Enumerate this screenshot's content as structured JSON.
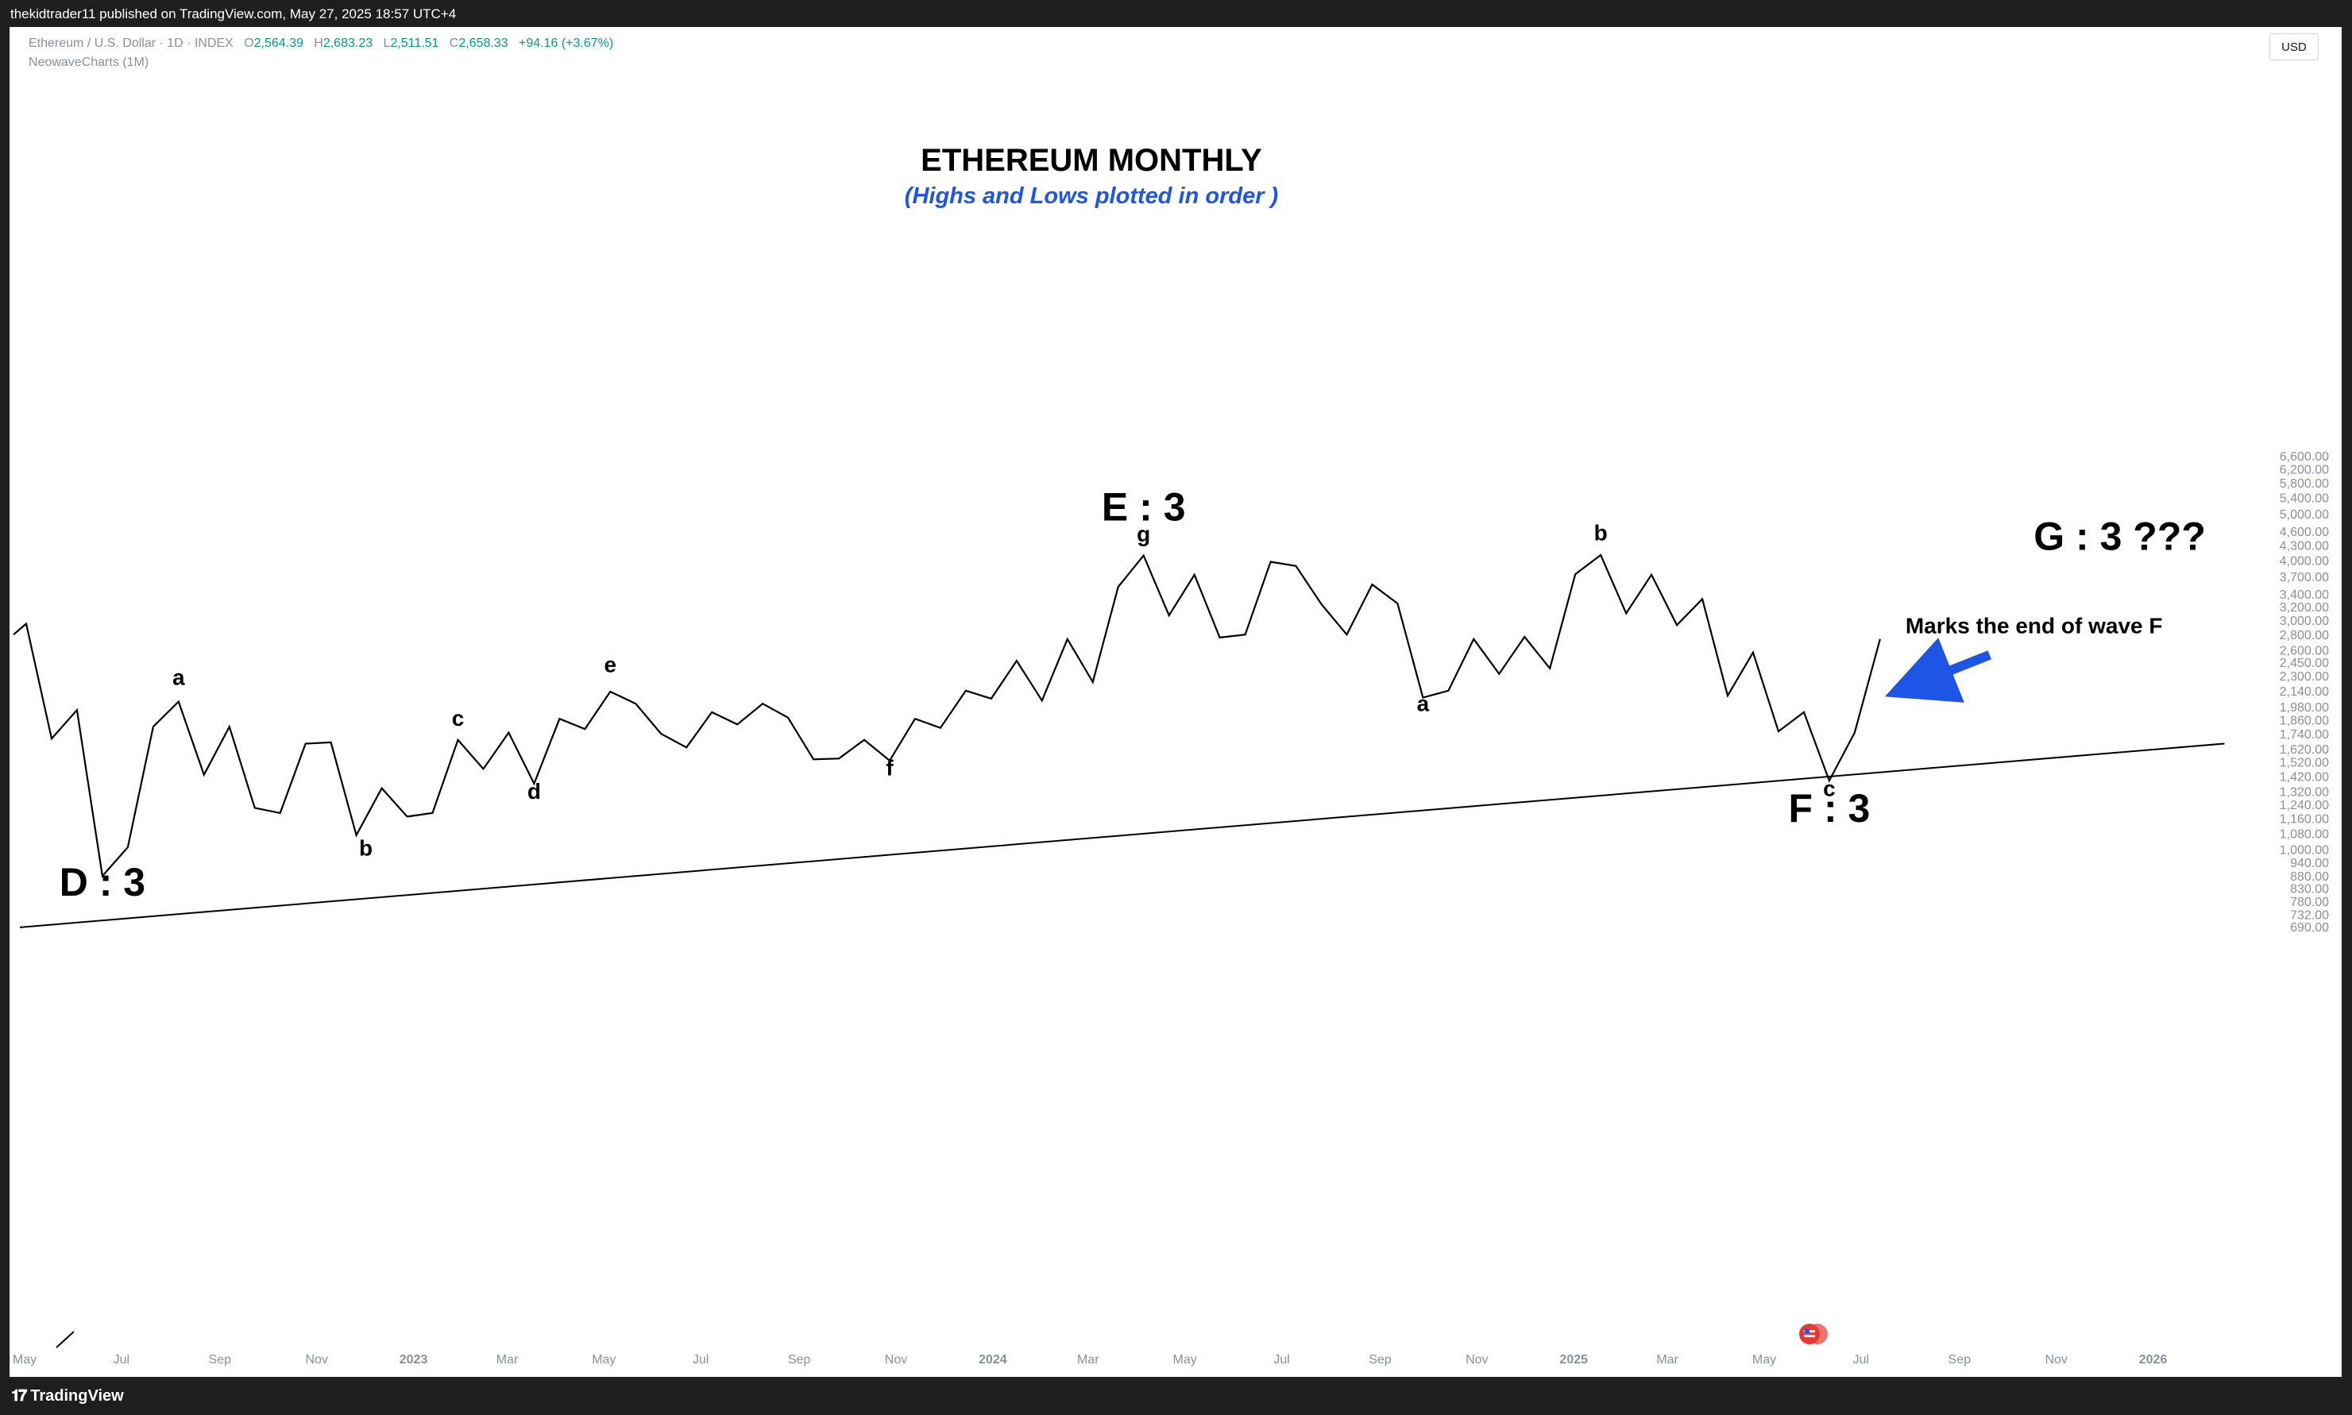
{
  "header": {
    "publisher": "thekidtrader11 published on TradingView.com, May 27, 2025 18:57 UTC+4"
  },
  "legend": {
    "symbol": "Ethereum / U.S. Dollar · 1D · INDEX",
    "o_label": "O",
    "o": "2,564.39",
    "h_label": "H",
    "h": "2,683.23",
    "l_label": "L",
    "l": "2,511.51",
    "c_label": "C",
    "c": "2,658.33",
    "change": "+94.16 (+3.67%)",
    "indicator": "NeowaveCharts (1M)"
  },
  "currency": "USD",
  "footer": {
    "brand": "TradingView"
  },
  "colors": {
    "accent_blue": "#1f55e6",
    "price_line": "#000000",
    "change_green": "#089981"
  },
  "chart_data": {
    "type": "line",
    "title": "ETHEREUM MONTHLY",
    "subtitle": "(Highs and Lows plotted in order )",
    "yscale": "log",
    "ylim": [
      660,
      7000
    ],
    "y_ticks": [
      "6,600.00",
      "6,200.00",
      "5,800.00",
      "5,400.00",
      "5,000.00",
      "4,600.00",
      "4,300.00",
      "4,000.00",
      "3,700.00",
      "3,400.00",
      "3,200.00",
      "3,000.00",
      "2,800.00",
      "2,600.00",
      "2,450.00",
      "2,300.00",
      "2,140.00",
      "1,980.00",
      "1,860.00",
      "1,740.00",
      "1,620.00",
      "1,520.00",
      "1,420.00",
      "1,320.00",
      "1,240.00",
      "1,160.00",
      "1,080.00",
      "1,000.00",
      "940.00",
      "880.00",
      "830.00",
      "780.00",
      "732.00",
      "690.00"
    ],
    "x_ticks": [
      {
        "label": "May",
        "date": "2022-05",
        "bold": false
      },
      {
        "label": "Jul",
        "date": "2022-07",
        "bold": false
      },
      {
        "label": "Sep",
        "date": "2022-09",
        "bold": false
      },
      {
        "label": "Nov",
        "date": "2022-11",
        "bold": false
      },
      {
        "label": "2023",
        "date": "2023-01",
        "bold": true
      },
      {
        "label": "Mar",
        "date": "2023-03",
        "bold": false
      },
      {
        "label": "May",
        "date": "2023-05",
        "bold": false
      },
      {
        "label": "Jul",
        "date": "2023-07",
        "bold": false
      },
      {
        "label": "Sep",
        "date": "2023-09",
        "bold": false
      },
      {
        "label": "Nov",
        "date": "2023-11",
        "bold": false
      },
      {
        "label": "2024",
        "date": "2024-01",
        "bold": true
      },
      {
        "label": "Mar",
        "date": "2024-03",
        "bold": false
      },
      {
        "label": "May",
        "date": "2024-05",
        "bold": false
      },
      {
        "label": "Jul",
        "date": "2024-07",
        "bold": false
      },
      {
        "label": "Sep",
        "date": "2024-09",
        "bold": false
      },
      {
        "label": "Nov",
        "date": "2024-11",
        "bold": false
      },
      {
        "label": "2025",
        "date": "2025-01",
        "bold": true
      },
      {
        "label": "Mar",
        "date": "2025-03",
        "bold": false
      },
      {
        "label": "May",
        "date": "2025-05",
        "bold": false
      },
      {
        "label": "Jul",
        "date": "2025-07",
        "bold": false
      },
      {
        "label": "Sep",
        "date": "2025-09",
        "bold": false
      },
      {
        "label": "Nov",
        "date": "2025-11",
        "bold": false
      },
      {
        "label": "2026",
        "date": "2026-01",
        "bold": true
      }
    ],
    "series": [
      {
        "color": "#000000",
        "points": [
          [
            "2022-04-24",
            2800
          ],
          [
            "2022-05-02",
            2950
          ],
          [
            "2022-05-18",
            1700
          ],
          [
            "2022-06-03",
            1950
          ],
          [
            "2022-06-19",
            880
          ],
          [
            "2022-07-05",
            1010
          ],
          [
            "2022-07-21",
            1800
          ],
          [
            "2022-08-06",
            2030
          ],
          [
            "2022-08-22",
            1430
          ],
          [
            "2022-09-07",
            1800
          ],
          [
            "2022-09-23",
            1220
          ],
          [
            "2022-10-09",
            1190
          ],
          [
            "2022-10-25",
            1660
          ],
          [
            "2022-11-10",
            1670
          ],
          [
            "2022-11-26",
            1070
          ],
          [
            "2022-12-12",
            1340
          ],
          [
            "2022-12-28",
            1170
          ],
          [
            "2023-01-13",
            1190
          ],
          [
            "2023-01-29",
            1690
          ],
          [
            "2023-02-14",
            1470
          ],
          [
            "2023-03-02",
            1750
          ],
          [
            "2023-03-18",
            1370
          ],
          [
            "2023-04-03",
            1870
          ],
          [
            "2023-04-19",
            1780
          ],
          [
            "2023-05-05",
            2130
          ],
          [
            "2023-05-21",
            2010
          ],
          [
            "2023-06-06",
            1740
          ],
          [
            "2023-06-22",
            1630
          ],
          [
            "2023-07-08",
            1930
          ],
          [
            "2023-07-24",
            1820
          ],
          [
            "2023-08-09",
            2010
          ],
          [
            "2023-08-25",
            1880
          ],
          [
            "2023-09-10",
            1540
          ],
          [
            "2023-09-26",
            1545
          ],
          [
            "2023-10-12",
            1690
          ],
          [
            "2023-10-28",
            1530
          ],
          [
            "2023-11-13",
            1870
          ],
          [
            "2023-11-29",
            1790
          ],
          [
            "2023-12-15",
            2140
          ],
          [
            "2023-12-31",
            2060
          ],
          [
            "2024-01-16",
            2470
          ],
          [
            "2024-02-01",
            2040
          ],
          [
            "2024-02-17",
            2740
          ],
          [
            "2024-03-04",
            2230
          ],
          [
            "2024-03-20",
            3520
          ],
          [
            "2024-04-05",
            4090
          ],
          [
            "2024-04-21",
            3070
          ],
          [
            "2024-05-07",
            3730
          ],
          [
            "2024-05-23",
            2760
          ],
          [
            "2024-06-08",
            2800
          ],
          [
            "2024-06-24",
            3970
          ],
          [
            "2024-07-10",
            3890
          ],
          [
            "2024-07-26",
            3240
          ],
          [
            "2024-08-11",
            2800
          ],
          [
            "2024-08-27",
            3560
          ],
          [
            "2024-09-12",
            3250
          ],
          [
            "2024-09-28",
            2070
          ],
          [
            "2024-10-14",
            2140
          ],
          [
            "2024-10-30",
            2740
          ],
          [
            "2024-11-15",
            2320
          ],
          [
            "2024-12-01",
            2770
          ],
          [
            "2024-12-17",
            2380
          ],
          [
            "2025-01-02",
            3740
          ],
          [
            "2025-01-18",
            4100
          ],
          [
            "2025-02-03",
            3100
          ],
          [
            "2025-02-19",
            3730
          ],
          [
            "2025-03-07",
            2930
          ],
          [
            "2025-03-23",
            3320
          ],
          [
            "2025-04-08",
            2090
          ],
          [
            "2025-04-24",
            2570
          ],
          [
            "2025-05-10",
            1760
          ],
          [
            "2025-05-26",
            1930
          ],
          [
            "2025-06-11",
            1390
          ],
          [
            "2025-06-27",
            1750
          ],
          [
            "2025-07-13",
            2740
          ]
        ]
      }
    ],
    "trendline": [
      [
        "2022-04-28",
        688
      ],
      [
        "2026-02-15",
        1660
      ]
    ],
    "labels": [
      {
        "text": "D : 3",
        "date": "2022-06-19",
        "price": 800,
        "size": "big"
      },
      {
        "text": "a",
        "date": "2022-08-06",
        "price": 2200,
        "size": "small"
      },
      {
        "text": "b",
        "date": "2022-12-02",
        "price": 970,
        "size": "small"
      },
      {
        "text": "c",
        "date": "2023-01-29",
        "price": 1810,
        "size": "small"
      },
      {
        "text": "d",
        "date": "2023-03-18",
        "price": 1275,
        "size": "small"
      },
      {
        "text": "e",
        "date": "2023-05-05",
        "price": 2340,
        "size": "small"
      },
      {
        "text": "f",
        "date": "2023-10-28",
        "price": 1425,
        "size": "small"
      },
      {
        "text": "g",
        "date": "2024-04-05",
        "price": 4370,
        "size": "small"
      },
      {
        "text": "E : 3",
        "date": "2024-04-05",
        "price": 4840,
        "size": "big"
      },
      {
        "text": "a",
        "date": "2024-09-28",
        "price": 1940,
        "size": "small"
      },
      {
        "text": "b",
        "date": "2025-01-18",
        "price": 4400,
        "size": "small"
      },
      {
        "text": "c",
        "date": "2025-06-11",
        "price": 1290,
        "size": "small"
      },
      {
        "text": "F : 3",
        "date": "2025-06-11",
        "price": 1140,
        "size": "big"
      },
      {
        "text": "G : 3    ???",
        "date": "2025-12-11",
        "price": 4200,
        "size": "big"
      },
      {
        "text": "Marks the end of wave F",
        "date": "2025-10-18",
        "price": 2820,
        "size": "medium"
      }
    ],
    "arrow": {
      "color": "#1f55e6",
      "from": [
        "2025-09-20",
        2540
      ],
      "to": [
        "2025-07-16",
        2080
      ]
    }
  }
}
